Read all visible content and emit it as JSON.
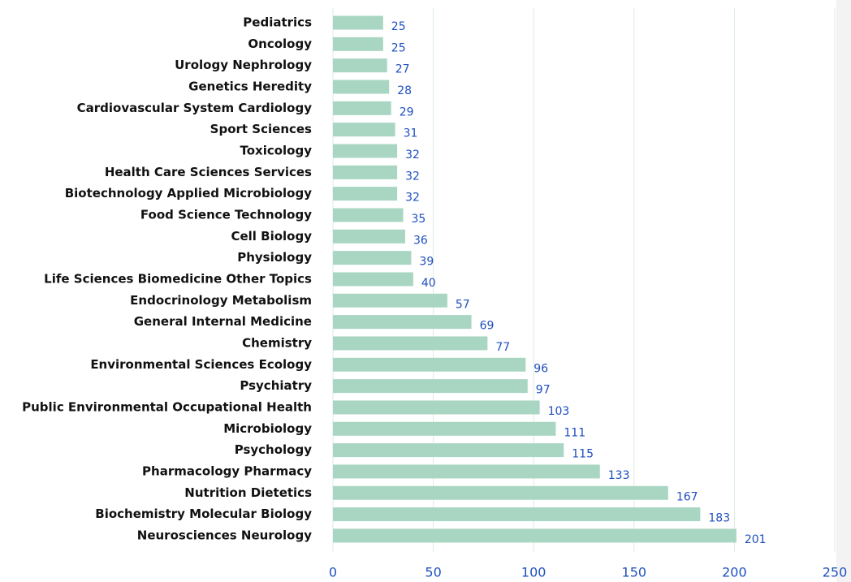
{
  "chart_data": {
    "type": "barh",
    "categories": [
      "Pediatrics",
      "Oncology",
      "Urology Nephrology",
      "Genetics Heredity",
      "Cardiovascular System Cardiology",
      "Sport Sciences",
      "Toxicology",
      "Health Care Sciences Services",
      "Biotechnology Applied Microbiology",
      "Food Science Technology",
      "Cell Biology",
      "Physiology",
      "Life Sciences Biomedicine Other Topics",
      "Endocrinology Metabolism",
      "General Internal Medicine",
      "Chemistry",
      "Environmental Sciences Ecology",
      "Psychiatry",
      "Public Environmental Occupational Health",
      "Microbiology",
      "Psychology",
      "Pharmacology Pharmacy",
      "Nutrition Dietetics",
      "Biochemistry Molecular Biology",
      "Neurosciences Neurology"
    ],
    "values": [
      25,
      25,
      27,
      28,
      29,
      31,
      32,
      32,
      32,
      35,
      36,
      39,
      40,
      57,
      69,
      77,
      96,
      97,
      103,
      111,
      115,
      133,
      167,
      183,
      201
    ],
    "color": "#a9d6c3",
    "xlim": [
      0,
      250
    ],
    "xticks": [
      0,
      50,
      100,
      150,
      200,
      250
    ],
    "grid": true
  }
}
